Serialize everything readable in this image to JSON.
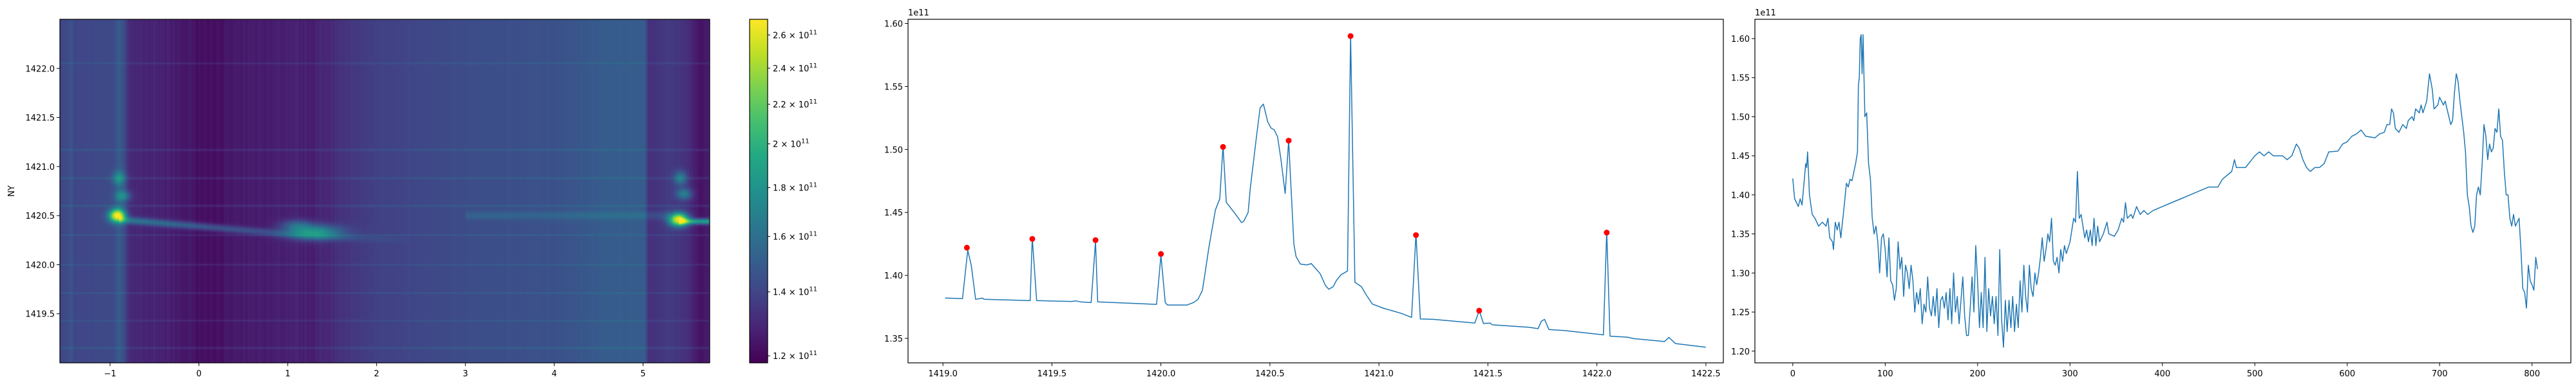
{
  "chart_data": [
    {
      "type": "heatmap",
      "ylabel": "NY",
      "xlabel": "",
      "xlim": [
        -1.565,
        5.75
      ],
      "ylim": [
        1419.0,
        1422.5
      ],
      "xticks": [
        "−1",
        "0",
        "1",
        "2",
        "3",
        "4",
        "5"
      ],
      "xtick_values": [
        -1,
        0,
        1,
        2,
        3,
        4,
        5
      ],
      "yticks": [
        "1419.5",
        "1420.0",
        "1420.5",
        "1421.0",
        "1421.5",
        "1422.0"
      ],
      "ytick_values": [
        1419.5,
        1420.0,
        1420.5,
        1421.0,
        1421.5,
        1422.0
      ],
      "colormap": "viridis",
      "color_scale": "log",
      "colorbar": {
        "range": [
          118000000000.0,
          270000000000.0
        ],
        "ticks": [
          {
            "value": 120000000000.0,
            "mantissa": "1.2 × 10",
            "exp": "11"
          },
          {
            "value": 140000000000.0,
            "mantissa": "1.4 × 10",
            "exp": "11"
          },
          {
            "value": 160000000000.0,
            "mantissa": "1.6 × 10",
            "exp": "11"
          },
          {
            "value": 180000000000.0,
            "mantissa": "1.8 × 10",
            "exp": "11"
          },
          {
            "value": 200000000000.0,
            "mantissa": "2 × 10",
            "exp": "11"
          },
          {
            "value": 220000000000.0,
            "mantissa": "2.2 × 10",
            "exp": "11"
          },
          {
            "value": 240000000000.0,
            "mantissa": "2.4 × 10",
            "exp": "11"
          },
          {
            "value": 260000000000.0,
            "mantissa": "2.6 × 10",
            "exp": "11"
          }
        ]
      },
      "features": {
        "bright_spots": [
          {
            "x": -0.92,
            "y": 1420.5
          },
          {
            "x": 1.3,
            "y": 1420.33
          },
          {
            "x": 5.4,
            "y": 1420.46
          }
        ],
        "horizontal_lines_y": [
          1419.15,
          1419.43,
          1419.71,
          1420.0,
          1420.3,
          1420.6,
          1420.88,
          1421.17,
          1422.05
        ]
      }
    },
    {
      "type": "line",
      "offset_text": "1e11",
      "xlim": [
        1418.84,
        1422.58
      ],
      "ylim": [
        1.3306,
        1.6033
      ],
      "xticks": [
        "1419.0",
        "1419.5",
        "1420.0",
        "1420.5",
        "1421.0",
        "1421.5",
        "1422.0",
        "1422.5"
      ],
      "xtick_values": [
        1419.0,
        1419.5,
        1420.0,
        1420.5,
        1421.0,
        1421.5,
        1422.0,
        1422.5
      ],
      "yticks": [
        "1.35",
        "1.40",
        "1.45",
        "1.50",
        "1.55",
        "1.60"
      ],
      "ytick_values": [
        1.35,
        1.4,
        1.45,
        1.5,
        1.55,
        1.6
      ],
      "line_color": "#1f77b4",
      "marker_color": "#ff0000",
      "x": [
        1419.01,
        1419.09,
        1419.114,
        1419.13,
        1419.15,
        1419.18,
        1419.19,
        1419.4,
        1419.41,
        1419.43,
        1419.59,
        1419.61,
        1419.63,
        1419.68,
        1419.7,
        1419.71,
        1419.98,
        1420.0,
        1420.02,
        1420.03,
        1420.12,
        1420.15,
        1420.17,
        1420.19,
        1420.2,
        1420.22,
        1420.24,
        1420.25,
        1420.27,
        1420.285,
        1420.3,
        1420.34,
        1420.37,
        1420.38,
        1420.4,
        1420.41,
        1420.44,
        1420.455,
        1420.47,
        1420.49,
        1420.505,
        1420.52,
        1420.535,
        1420.55,
        1420.57,
        1420.586,
        1420.61,
        1420.62,
        1420.64,
        1420.67,
        1420.69,
        1420.7,
        1420.73,
        1420.755,
        1420.77,
        1420.79,
        1420.805,
        1420.826,
        1420.856,
        1420.87,
        1420.89,
        1420.92,
        1420.94,
        1420.97,
        1421.02,
        1421.1,
        1421.15,
        1421.17,
        1421.19,
        1421.25,
        1421.44,
        1421.46,
        1421.48,
        1421.51,
        1421.52,
        1421.69,
        1421.73,
        1421.745,
        1421.76,
        1421.78,
        1421.85,
        1422.03,
        1422.045,
        1422.06,
        1422.14,
        1422.17,
        1422.31,
        1422.33,
        1422.36,
        1422.5
      ],
      "y": [
        1.382,
        1.3816,
        1.42,
        1.408,
        1.381,
        1.382,
        1.381,
        1.38,
        1.43,
        1.38,
        1.3793,
        1.3798,
        1.379,
        1.3785,
        1.427,
        1.379,
        1.377,
        1.416,
        1.3785,
        1.3765,
        1.3765,
        1.3785,
        1.381,
        1.388,
        1.399,
        1.422,
        1.442,
        1.452,
        1.461,
        1.503,
        1.458,
        1.449,
        1.442,
        1.443,
        1.45,
        1.469,
        1.5125,
        1.533,
        1.536,
        1.522,
        1.517,
        1.5155,
        1.51,
        1.493,
        1.465,
        1.507,
        1.425,
        1.415,
        1.409,
        1.4084,
        1.4094,
        1.4074,
        1.4015,
        1.392,
        1.389,
        1.391,
        1.396,
        1.4005,
        1.4035,
        1.591,
        1.3946,
        1.391,
        1.385,
        1.3773,
        1.374,
        1.37,
        1.3667,
        1.433,
        1.3655,
        1.3651,
        1.3622,
        1.372,
        1.3618,
        1.3622,
        1.3608,
        1.3588,
        1.3577,
        1.3636,
        1.3651,
        1.357,
        1.3563,
        1.3528,
        1.4355,
        1.3518,
        1.351,
        1.3498,
        1.3475,
        1.3508,
        1.3459,
        1.343
      ],
      "peaks": {
        "x": [
          1419.11,
          1419.41,
          1419.7,
          1420.0,
          1420.285,
          1420.586,
          1420.87,
          1421.17,
          1421.46,
          1422.045
        ],
        "y": [
          1.422,
          1.429,
          1.428,
          1.417,
          1.502,
          1.507,
          1.59,
          1.432,
          1.372,
          1.434
        ]
      }
    },
    {
      "type": "line",
      "offset_text": "1e11",
      "xlim": [
        -41,
        842
      ],
      "ylim": [
        1.185,
        1.6247
      ],
      "xticks": [
        "0",
        "100",
        "200",
        "300",
        "400",
        "500",
        "600",
        "700",
        "800"
      ],
      "xtick_values": [
        0,
        100,
        200,
        300,
        400,
        500,
        600,
        700,
        800
      ],
      "yticks": [
        "1.20",
        "1.25",
        "1.30",
        "1.35",
        "1.40",
        "1.45",
        "1.50",
        "1.55",
        "1.60"
      ],
      "ytick_values": [
        1.2,
        1.25,
        1.3,
        1.35,
        1.4,
        1.45,
        1.5,
        1.55,
        1.6
      ],
      "line_color": "#1f77b4",
      "x": [
        0,
        2,
        4,
        6,
        8,
        10,
        14,
        15,
        16,
        18,
        21,
        24,
        28,
        32,
        36,
        38,
        40,
        43,
        44,
        46,
        48,
        50,
        52,
        56,
        58,
        60,
        62,
        64,
        68,
        70,
        71,
        72,
        73,
        74,
        75,
        76,
        78,
        80,
        82,
        84,
        86,
        88,
        90,
        92,
        94,
        96,
        98,
        100,
        102,
        104,
        106,
        108,
        110,
        112,
        114,
        116,
        118,
        120,
        122,
        124,
        126,
        128,
        130,
        132,
        134,
        136,
        138,
        140,
        142,
        144,
        146,
        148,
        150,
        152,
        154,
        156,
        158,
        160,
        162,
        164,
        166,
        168,
        170,
        172,
        174,
        176,
        178,
        180,
        182,
        184,
        186,
        188,
        190,
        192,
        194,
        196,
        198,
        200,
        202,
        204,
        206,
        208,
        210,
        212,
        214,
        216,
        218,
        220,
        222,
        224,
        226,
        228,
        230,
        232,
        234,
        236,
        238,
        240,
        242,
        244,
        246,
        248,
        250,
        252,
        254,
        256,
        258,
        260,
        262,
        264,
        266,
        268,
        270,
        272,
        274,
        276,
        278,
        280,
        282,
        284,
        286,
        288,
        290,
        292,
        294,
        296,
        300,
        304,
        306,
        308,
        310,
        312,
        314,
        316,
        318,
        320,
        322,
        324,
        326,
        328,
        330,
        332,
        336,
        340,
        342,
        348,
        352,
        356,
        358,
        360,
        362,
        366,
        368,
        372,
        376,
        380,
        384,
        390,
        400,
        410,
        420,
        430,
        440,
        450,
        460,
        465,
        470,
        475,
        478,
        480,
        490,
        500,
        505,
        510,
        515,
        520,
        530,
        535,
        540,
        545,
        548,
        552,
        556,
        560,
        565,
        570,
        575,
        580,
        590,
        595,
        600,
        605,
        610,
        615,
        620,
        630,
        635,
        640,
        643,
        646,
        648,
        650,
        652,
        656,
        660,
        664,
        666,
        670,
        672,
        674,
        678,
        680,
        682,
        686,
        689,
        692,
        694,
        698,
        700,
        704,
        706,
        708,
        710,
        712,
        714,
        716,
        718,
        720,
        722,
        724,
        726,
        728,
        730,
        732,
        734,
        736,
        738,
        740,
        742,
        744,
        746,
        748,
        750,
        752,
        754,
        756,
        758,
        760,
        762,
        764,
        766,
        768,
        770,
        772,
        774,
        776,
        778,
        780,
        782,
        786,
        788,
        790,
        792,
        794,
        796,
        798,
        800,
        802,
        804,
        806
      ],
      "y": [
        1.421,
        1.395,
        1.39,
        1.385,
        1.395,
        1.387,
        1.44,
        1.435,
        1.455,
        1.4,
        1.375,
        1.37,
        1.36,
        1.365,
        1.36,
        1.37,
        1.345,
        1.34,
        1.33,
        1.365,
        1.355,
        1.365,
        1.345,
        1.39,
        1.415,
        1.41,
        1.42,
        1.418,
        1.44,
        1.455,
        1.54,
        1.55,
        1.6,
        1.605,
        1.555,
        1.605,
        1.5,
        1.505,
        1.44,
        1.42,
        1.37,
        1.35,
        1.36,
        1.34,
        1.3,
        1.345,
        1.35,
        1.33,
        1.295,
        1.345,
        1.29,
        1.285,
        1.265,
        1.28,
        1.34,
        1.305,
        1.32,
        1.27,
        1.31,
        1.3,
        1.28,
        1.31,
        1.29,
        1.25,
        1.275,
        1.26,
        1.28,
        1.235,
        1.26,
        1.25,
        1.295,
        1.255,
        1.245,
        1.27,
        1.245,
        1.28,
        1.23,
        1.265,
        1.27,
        1.255,
        1.275,
        1.24,
        1.28,
        1.235,
        1.3,
        1.25,
        1.27,
        1.235,
        1.265,
        1.295,
        1.245,
        1.22,
        1.22,
        1.255,
        1.295,
        1.25,
        1.335,
        1.29,
        1.23,
        1.275,
        1.23,
        1.32,
        1.225,
        1.28,
        1.245,
        1.27,
        1.235,
        1.27,
        1.22,
        1.33,
        1.24,
        1.205,
        1.265,
        1.225,
        1.265,
        1.23,
        1.27,
        1.225,
        1.26,
        1.23,
        1.29,
        1.25,
        1.31,
        1.27,
        1.25,
        1.31,
        1.28,
        1.27,
        1.3,
        1.285,
        1.3,
        1.32,
        1.345,
        1.315,
        1.33,
        1.35,
        1.34,
        1.37,
        1.315,
        1.31,
        1.32,
        1.3,
        1.33,
        1.315,
        1.335,
        1.325,
        1.34,
        1.37,
        1.365,
        1.43,
        1.37,
        1.375,
        1.36,
        1.345,
        1.355,
        1.34,
        1.355,
        1.335,
        1.37,
        1.335,
        1.36,
        1.34,
        1.35,
        1.365,
        1.35,
        1.347,
        1.355,
        1.37,
        1.365,
        1.39,
        1.37,
        1.375,
        1.37,
        1.385,
        1.375,
        1.38,
        1.375,
        1.38,
        1.385,
        1.39,
        1.395,
        1.4,
        1.405,
        1.41,
        1.41,
        1.42,
        1.425,
        1.43,
        1.445,
        1.435,
        1.435,
        1.45,
        1.455,
        1.45,
        1.455,
        1.45,
        1.45,
        1.445,
        1.45,
        1.465,
        1.46,
        1.445,
        1.435,
        1.43,
        1.435,
        1.435,
        1.44,
        1.455,
        1.456,
        1.465,
        1.468,
        1.475,
        1.478,
        1.483,
        1.475,
        1.473,
        1.478,
        1.48,
        1.49,
        1.49,
        1.51,
        1.505,
        1.485,
        1.48,
        1.49,
        1.485,
        1.495,
        1.5,
        1.495,
        1.51,
        1.505,
        1.515,
        1.505,
        1.52,
        1.555,
        1.535,
        1.51,
        1.515,
        1.525,
        1.515,
        1.52,
        1.51,
        1.5,
        1.49,
        1.495,
        1.53,
        1.555,
        1.545,
        1.52,
        1.5,
        1.48,
        1.455,
        1.4,
        1.385,
        1.36,
        1.352,
        1.36,
        1.4,
        1.41,
        1.4,
        1.44,
        1.49,
        1.475,
        1.445,
        1.465,
        1.455,
        1.46,
        1.485,
        1.48,
        1.51,
        1.475,
        1.47,
        1.43,
        1.4,
        1.4,
        1.37,
        1.36,
        1.375,
        1.36,
        1.37,
        1.33,
        1.28,
        1.275,
        1.255,
        1.31,
        1.29,
        1.285,
        1.278,
        1.32,
        1.305
      ]
    }
  ]
}
